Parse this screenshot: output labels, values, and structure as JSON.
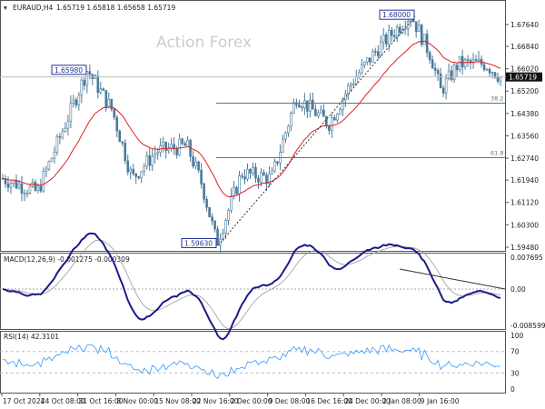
{
  "header": {
    "symbol": "EURAUD,H4",
    "ohlc": "1.65719 1.65818 1.65658 1.65719"
  },
  "watermark": "Action Forex",
  "colors": {
    "candle": "#4a7a9a",
    "ma": "#e02020",
    "macd": "#1a1a8c",
    "signal": "#999999",
    "rsi": "#3399ff",
    "fib": "#557788"
  },
  "chart_data": {
    "type": "line",
    "title": "EURAUD,H4",
    "price_ticks": [
      "1.67640",
      "1.66840",
      "1.66020",
      "1.65200",
      "1.64380",
      "1.63560",
      "1.62740",
      "1.61940",
      "1.61120",
      "1.60300",
      "1.59480"
    ],
    "price_tick_values": [
      1.6764,
      1.6684,
      1.6602,
      1.652,
      1.6438,
      1.6356,
      1.6274,
      1.6194,
      1.6112,
      1.603,
      1.5948
    ],
    "ylim": [
      1.5948,
      1.6825
    ],
    "current_price": "1.65719",
    "current_price_value": 1.65719,
    "x_labels": [
      "17 Oct 2024",
      "24 Oct 08:00",
      "31 Oct 16:00",
      "8 Nov 00:00",
      "15 Nov 08:00",
      "22 Nov 16:00",
      "2 Dec 00:00",
      "9 Dec 08:00",
      "16 Dec 16:00",
      "24 Dec 00:00",
      "2 Jan 08:00",
      "9 Jan 16:00"
    ],
    "price_path": [
      [
        0,
        1.62
      ],
      [
        0.07,
        1.615
      ],
      [
        0.17,
        1.6598
      ],
      [
        0.22,
        1.645
      ],
      [
        0.26,
        1.62
      ],
      [
        0.31,
        1.63
      ],
      [
        0.37,
        1.632
      ],
      [
        0.4,
        1.618
      ],
      [
        0.43,
        1.5963
      ],
      [
        0.48,
        1.622
      ],
      [
        0.54,
        1.62
      ],
      [
        0.59,
        1.65
      ],
      [
        0.655,
        1.64
      ],
      [
        0.7,
        1.655
      ],
      [
        0.755,
        1.668
      ],
      [
        0.82,
        1.68
      ],
      [
        0.86,
        1.665
      ],
      [
        0.88,
        1.652
      ],
      [
        0.915,
        1.662
      ],
      [
        0.97,
        1.662
      ],
      [
        1.0,
        1.65719
      ]
    ],
    "annotations": [
      {
        "label": "1.65980",
        "value": 1.6598
      },
      {
        "label": "1.68000",
        "value": 1.68
      },
      {
        "label": "1.59630",
        "value": 1.5963
      }
    ],
    "fib_levels": [
      {
        "label": "38.2",
        "value": 1.6476
      },
      {
        "label": "61.8",
        "value": 1.6276
      }
    ],
    "macd": {
      "label": "MACD(12,26,9) -0.001275 -0.000309",
      "ticks": [
        "0.007695",
        "0.00",
        "-0.008599"
      ],
      "range": [
        -0.008599,
        0.007695
      ]
    },
    "rsi": {
      "label": "RSI(14) 42.3101",
      "ticks": [
        "100",
        "70",
        "30",
        "0"
      ],
      "range": [
        0,
        100
      ]
    }
  }
}
